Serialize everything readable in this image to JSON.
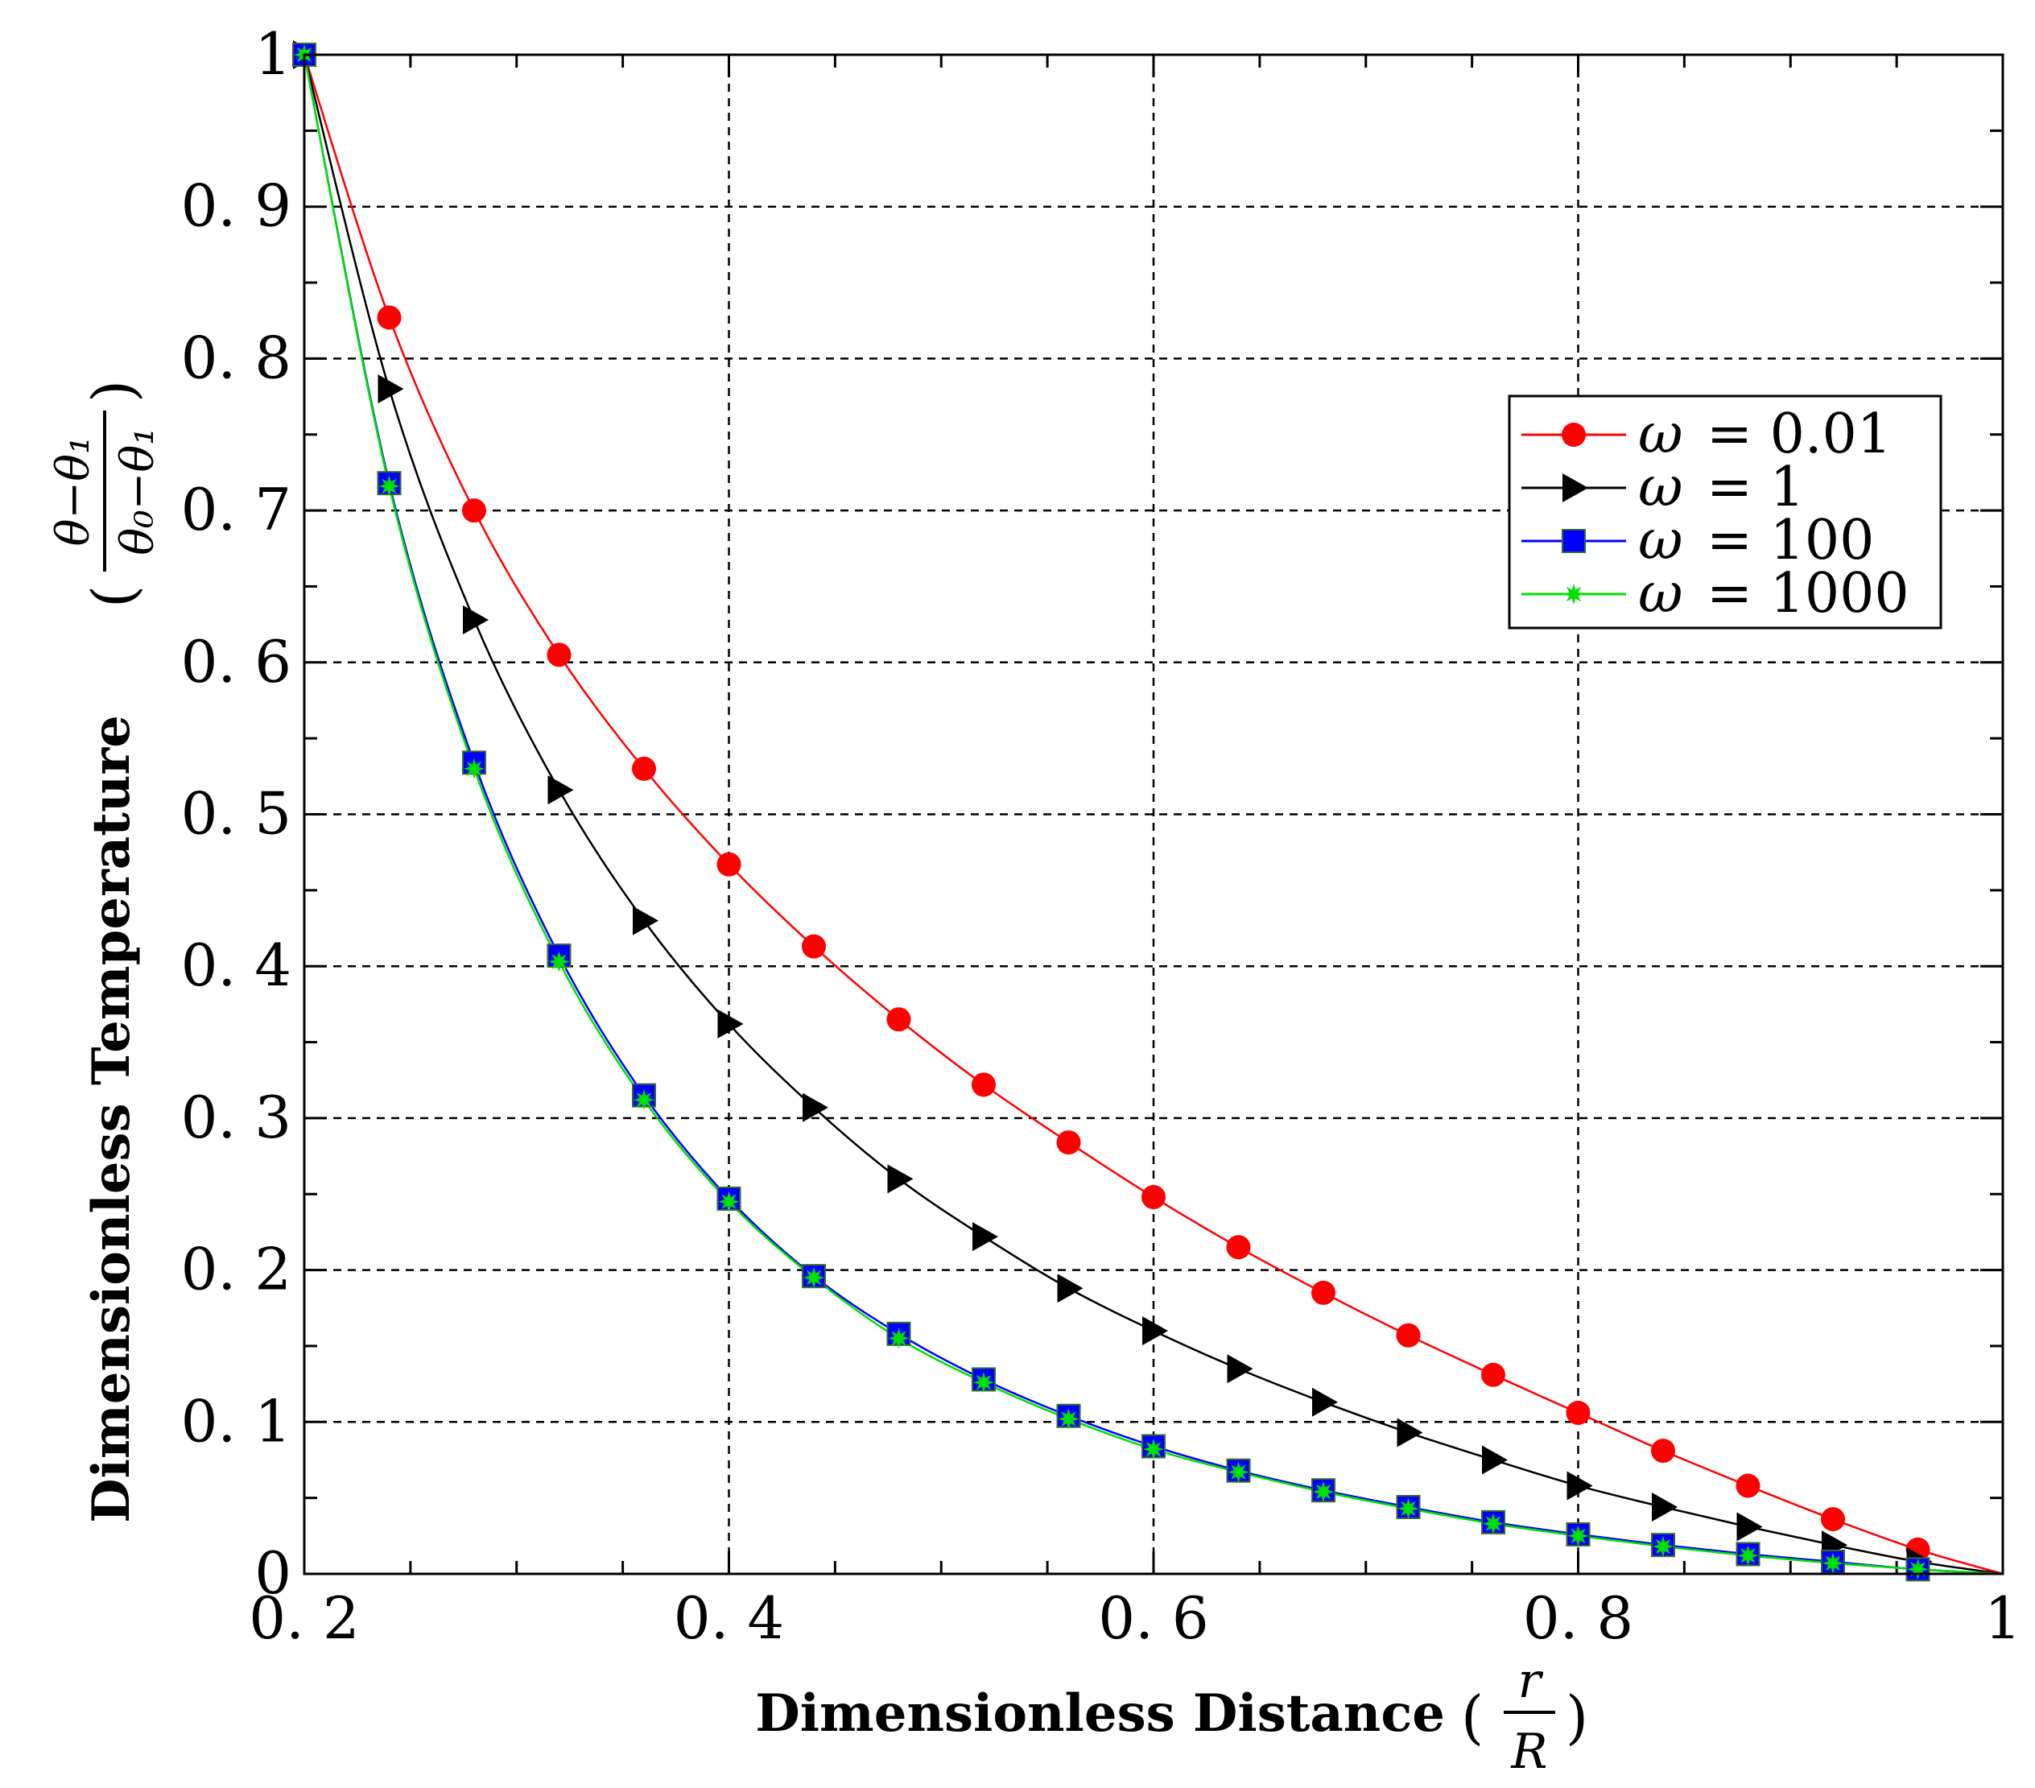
{
  "chart_data": {
    "type": "line",
    "title": "",
    "xlabel": "Dimensionless Distance",
    "xlabel_math": {
      "open": "(",
      "numerator": "r",
      "denominator": "R",
      "close": ")"
    },
    "ylabel": "Dimensionless Temperature",
    "ylabel_math": {
      "open": "(",
      "numerator": "θ−θ₁",
      "denominator": "θ₀−θ₁",
      "close": ")"
    },
    "xlim": [
      0.2,
      1.0
    ],
    "ylim": [
      0,
      1.0
    ],
    "x_ticks": [
      0.2,
      0.4,
      0.6,
      0.8,
      1.0
    ],
    "x_tick_labels": [
      "0. 2",
      "0. 4",
      "0. 6",
      "0. 8",
      "1"
    ],
    "y_ticks": [
      0,
      0.1,
      0.2,
      0.3,
      0.4,
      0.5,
      0.6,
      0.7,
      0.8,
      0.9,
      1.0
    ],
    "y_tick_labels": [
      "0",
      "0. 1",
      "0. 2",
      "0. 3",
      "0. 4",
      "0. 5",
      "0. 6",
      "0. 7",
      "0. 8",
      "0. 9",
      "1"
    ],
    "grid": true,
    "legend_position": "upper-right",
    "x": [
      0.2,
      0.24,
      0.28,
      0.32,
      0.36,
      0.4,
      0.44,
      0.48,
      0.52,
      0.56,
      0.6,
      0.64,
      0.68,
      0.72,
      0.76,
      0.8,
      0.84,
      0.88,
      0.92,
      0.96,
      1.0
    ],
    "series": [
      {
        "name": "ω = 0.01",
        "legend_symbol": "ω",
        "legend_value": "= 0.01",
        "color": "#ff0000",
        "marker": "circle",
        "values": [
          1.0,
          0.827,
          0.7,
          0.605,
          0.53,
          0.467,
          0.413,
          0.365,
          0.322,
          0.284,
          0.248,
          0.215,
          0.185,
          0.157,
          0.131,
          0.106,
          0.081,
          0.058,
          0.036,
          0.016,
          0.0
        ]
      },
      {
        "name": "ω = 1",
        "legend_symbol": "ω",
        "legend_value": "= 1",
        "color": "#000000",
        "marker": "triangle-right",
        "values": [
          1.0,
          0.78,
          0.628,
          0.516,
          0.43,
          0.362,
          0.307,
          0.26,
          0.222,
          0.188,
          0.16,
          0.135,
          0.113,
          0.093,
          0.075,
          0.058,
          0.044,
          0.031,
          0.019,
          0.008,
          0.0
        ]
      },
      {
        "name": "ω = 100",
        "legend_symbol": "ω",
        "legend_value": "= 100",
        "color": "#0000ff",
        "marker": "square",
        "values": [
          1.0,
          0.718,
          0.534,
          0.407,
          0.315,
          0.247,
          0.196,
          0.158,
          0.128,
          0.104,
          0.084,
          0.068,
          0.055,
          0.044,
          0.034,
          0.026,
          0.019,
          0.013,
          0.008,
          0.003,
          0.0
        ]
      },
      {
        "name": "ω = 1000",
        "legend_symbol": "ω",
        "legend_value": "= 1000",
        "color": "#00e000",
        "marker": "star",
        "values": [
          1.0,
          0.716,
          0.53,
          0.403,
          0.312,
          0.245,
          0.195,
          0.155,
          0.126,
          0.102,
          0.082,
          0.067,
          0.054,
          0.043,
          0.033,
          0.025,
          0.018,
          0.012,
          0.007,
          0.003,
          0.0
        ]
      }
    ]
  }
}
